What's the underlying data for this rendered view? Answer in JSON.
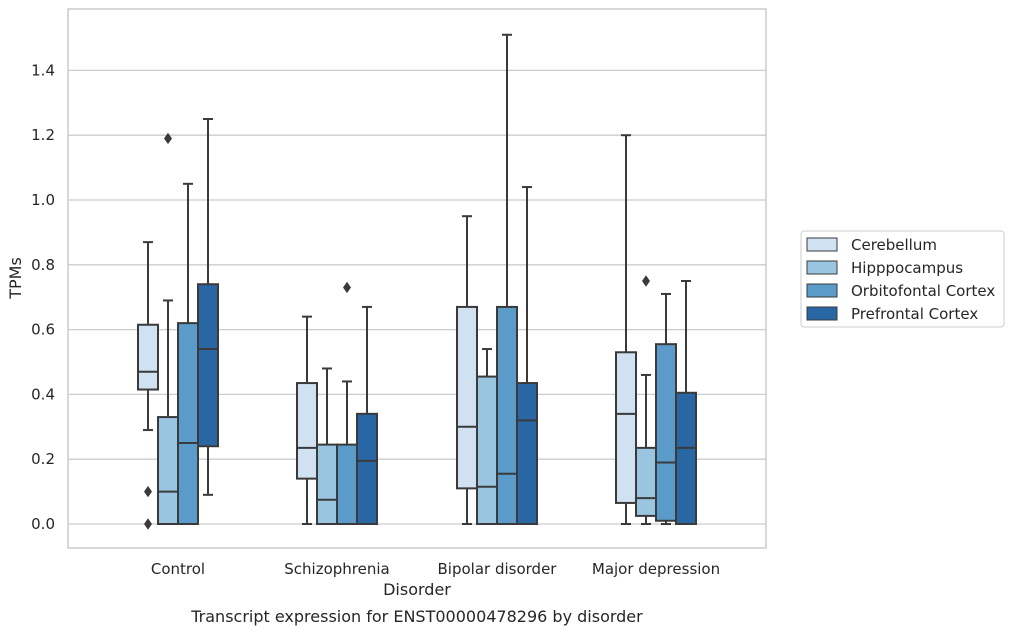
{
  "caption": "Transcript expression for ENST00000478296 by disorder",
  "chart_data": {
    "type": "box",
    "title": "",
    "xlabel": "Disorder",
    "ylabel": "TPMs",
    "ylim": [
      -0.07,
      1.6
    ],
    "yticks": [
      0.0,
      0.2,
      0.4,
      0.6,
      0.8,
      1.0,
      1.2,
      1.4
    ],
    "ytick_labels": [
      "0.0",
      "0.2",
      "0.4",
      "0.6",
      "0.8",
      "1.0",
      "1.2",
      "1.4"
    ],
    "grid": "horizontal",
    "legend_position": "right",
    "categories": [
      "Control",
      "Schizophrenia",
      "Bipolar disorder",
      "Major depression"
    ],
    "series": [
      {
        "name": "Cerebellum",
        "color": "#d0e1f2",
        "boxes": [
          {
            "whislo": 0.29,
            "q1": 0.415,
            "med": 0.47,
            "q3": 0.615,
            "whishi": 0.87,
            "fliers": [
              0.1,
              0.0
            ]
          },
          {
            "whislo": 0.0,
            "q1": 0.14,
            "med": 0.235,
            "q3": 0.435,
            "whishi": 0.64,
            "fliers": []
          },
          {
            "whislo": 0.0,
            "q1": 0.11,
            "med": 0.3,
            "q3": 0.67,
            "whishi": 0.95,
            "fliers": []
          },
          {
            "whislo": 0.0,
            "q1": 0.065,
            "med": 0.34,
            "q3": 0.53,
            "whishi": 1.2,
            "fliers": []
          }
        ]
      },
      {
        "name": "Hipppocampus",
        "color": "#9ac5e0",
        "boxes": [
          {
            "whislo": 0.0,
            "q1": 0.0,
            "med": 0.1,
            "q3": 0.33,
            "whishi": 0.69,
            "fliers": [
              1.19
            ]
          },
          {
            "whislo": 0.0,
            "q1": 0.0,
            "med": 0.075,
            "q3": 0.245,
            "whishi": 0.48,
            "fliers": []
          },
          {
            "whislo": 0.0,
            "q1": 0.0,
            "med": 0.115,
            "q3": 0.455,
            "whishi": 0.54,
            "fliers": []
          },
          {
            "whislo": 0.0,
            "q1": 0.025,
            "med": 0.08,
            "q3": 0.235,
            "whishi": 0.46,
            "fliers": [
              0.75
            ]
          }
        ]
      },
      {
        "name": "Orbitofontal Cortex",
        "color": "#5a9bc9",
        "boxes": [
          {
            "whislo": 0.0,
            "q1": 0.0,
            "med": 0.25,
            "q3": 0.62,
            "whishi": 1.05,
            "fliers": []
          },
          {
            "whislo": 0.0,
            "q1": 0.0,
            "med": 0.0,
            "q3": 0.245,
            "whishi": 0.44,
            "fliers": [
              0.73
            ]
          },
          {
            "whislo": 0.0,
            "q1": 0.0,
            "med": 0.155,
            "q3": 0.67,
            "whishi": 1.51,
            "fliers": []
          },
          {
            "whislo": 0.0,
            "q1": 0.01,
            "med": 0.19,
            "q3": 0.555,
            "whishi": 0.71,
            "fliers": []
          }
        ]
      },
      {
        "name": "Prefrontal Cortex",
        "color": "#2867a4",
        "boxes": [
          {
            "whislo": 0.09,
            "q1": 0.24,
            "med": 0.54,
            "q3": 0.74,
            "whishi": 1.25,
            "fliers": []
          },
          {
            "whislo": 0.0,
            "q1": 0.0,
            "med": 0.195,
            "q3": 0.34,
            "whishi": 0.67,
            "fliers": []
          },
          {
            "whislo": 0.0,
            "q1": 0.0,
            "med": 0.32,
            "q3": 0.435,
            "whishi": 1.04,
            "fliers": []
          },
          {
            "whislo": 0.0,
            "q1": 0.0,
            "med": 0.235,
            "q3": 0.405,
            "whishi": 0.75,
            "fliers": []
          }
        ]
      }
    ]
  }
}
